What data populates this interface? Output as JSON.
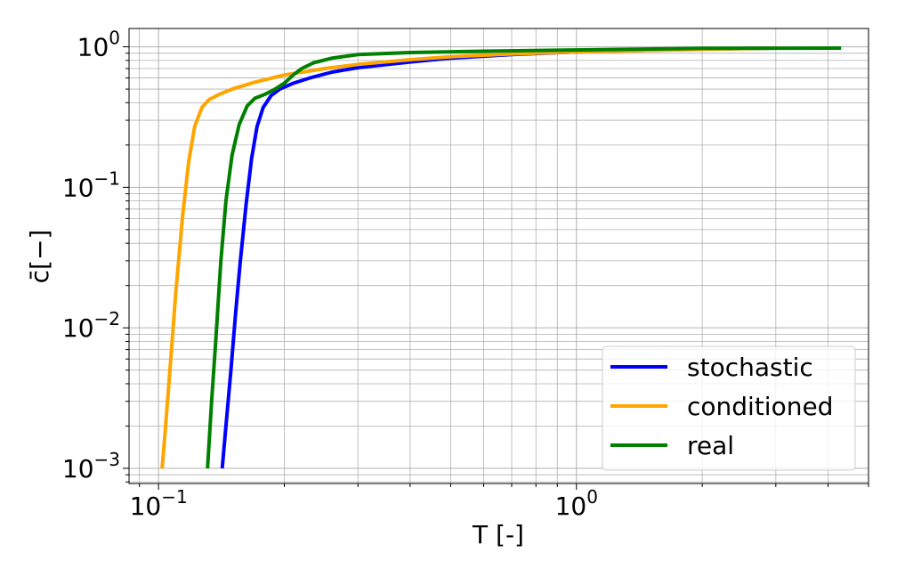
{
  "chart_data": {
    "type": "line",
    "xlabel": "T [-]",
    "ylabel": "c̄[−]",
    "xscale": "log",
    "yscale": "log",
    "xlim": [
      0.085,
      5.0
    ],
    "ylim": [
      0.00078,
      1.35
    ],
    "grid": "major+minor",
    "legend_position": "bottom-right",
    "x_ticks": [
      {
        "value": 0.1,
        "base": "10",
        "exp": "−1"
      },
      {
        "value": 1,
        "base": "10",
        "exp": "0"
      }
    ],
    "y_ticks": [
      {
        "value": 0.001,
        "base": "10",
        "exp": "−3"
      },
      {
        "value": 0.01,
        "base": "10",
        "exp": "−2"
      },
      {
        "value": 0.1,
        "base": "10",
        "exp": "−1"
      },
      {
        "value": 1,
        "base": "10",
        "exp": "0"
      }
    ],
    "series": [
      {
        "name": "stochastic",
        "color": "#0000ff",
        "points": [
          [
            0.142,
            0.001
          ],
          [
            0.145,
            0.002
          ],
          [
            0.149,
            0.005
          ],
          [
            0.153,
            0.013
          ],
          [
            0.157,
            0.03
          ],
          [
            0.162,
            0.075
          ],
          [
            0.167,
            0.16
          ],
          [
            0.172,
            0.27
          ],
          [
            0.178,
            0.37
          ],
          [
            0.186,
            0.45
          ],
          [
            0.195,
            0.5
          ],
          [
            0.21,
            0.55
          ],
          [
            0.23,
            0.6
          ],
          [
            0.26,
            0.66
          ],
          [
            0.3,
            0.71
          ],
          [
            0.4,
            0.78
          ],
          [
            0.5,
            0.83
          ],
          [
            0.7,
            0.88
          ],
          [
            1.0,
            0.92
          ],
          [
            2.0,
            0.965
          ],
          [
            3.0,
            0.98
          ]
        ]
      },
      {
        "name": "conditioned",
        "color": "#ffa500",
        "points": [
          [
            0.102,
            0.001
          ],
          [
            0.104,
            0.002
          ],
          [
            0.107,
            0.006
          ],
          [
            0.11,
            0.018
          ],
          [
            0.114,
            0.06
          ],
          [
            0.118,
            0.15
          ],
          [
            0.122,
            0.27
          ],
          [
            0.127,
            0.37
          ],
          [
            0.132,
            0.42
          ],
          [
            0.14,
            0.46
          ],
          [
            0.15,
            0.5
          ],
          [
            0.17,
            0.56
          ],
          [
            0.2,
            0.63
          ],
          [
            0.25,
            0.7
          ],
          [
            0.3,
            0.75
          ],
          [
            0.4,
            0.81
          ],
          [
            0.5,
            0.85
          ],
          [
            0.7,
            0.89
          ],
          [
            1.0,
            0.92
          ],
          [
            2.0,
            0.96
          ],
          [
            3.0,
            0.98
          ]
        ]
      },
      {
        "name": "real",
        "color": "#008000",
        "points": [
          [
            0.131,
            0.001
          ],
          [
            0.134,
            0.003
          ],
          [
            0.137,
            0.008
          ],
          [
            0.141,
            0.03
          ],
          [
            0.145,
            0.08
          ],
          [
            0.15,
            0.17
          ],
          [
            0.156,
            0.28
          ],
          [
            0.163,
            0.38
          ],
          [
            0.17,
            0.43
          ],
          [
            0.18,
            0.46
          ],
          [
            0.19,
            0.5
          ],
          [
            0.2,
            0.55
          ],
          [
            0.21,
            0.63
          ],
          [
            0.22,
            0.7
          ],
          [
            0.235,
            0.77
          ],
          [
            0.26,
            0.83
          ],
          [
            0.3,
            0.88
          ],
          [
            0.4,
            0.91
          ],
          [
            0.6,
            0.93
          ],
          [
            1.0,
            0.95
          ],
          [
            2.0,
            0.975
          ],
          [
            4.3,
            0.98
          ]
        ]
      }
    ]
  }
}
